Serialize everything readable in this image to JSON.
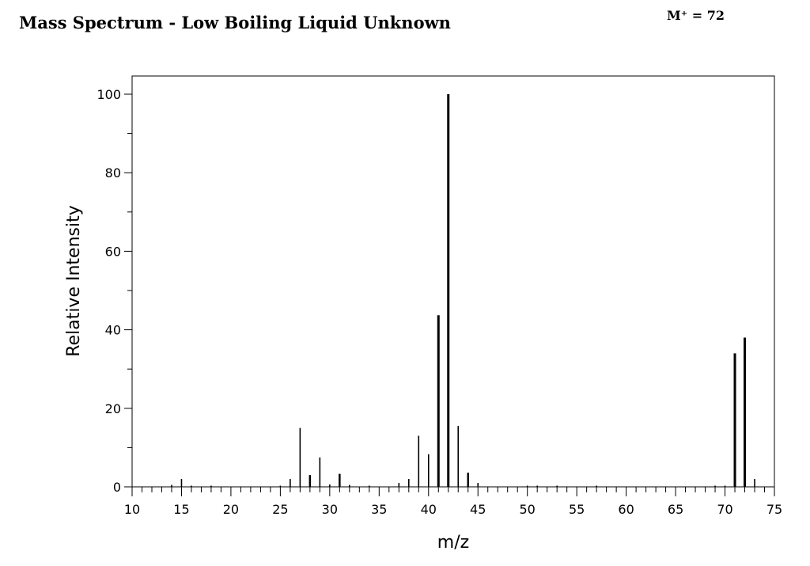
{
  "header": {
    "title": "Mass Spectrum - Low Boiling Liquid Unknown",
    "molecular_ion": "M⁺ = 72"
  },
  "chart_data": {
    "type": "bar",
    "title": "Mass Spectrum - Low Boiling Liquid Unknown",
    "xlabel": "m/z",
    "ylabel": "Relative Intensity",
    "xlim": [
      10,
      75
    ],
    "ylim": [
      0,
      100
    ],
    "x_major_ticks": [
      10,
      15,
      20,
      25,
      30,
      35,
      40,
      45,
      50,
      55,
      60,
      65,
      70,
      75
    ],
    "y_major_ticks": [
      0,
      20,
      40,
      60,
      80,
      100
    ],
    "grid": false,
    "line_color": "#000000",
    "series": [
      {
        "peaks": [
          {
            "mz": 14,
            "intensity": 0.5
          },
          {
            "mz": 15,
            "intensity": 2
          },
          {
            "mz": 16,
            "intensity": 0.3
          },
          {
            "mz": 18,
            "intensity": 0.3
          },
          {
            "mz": 25,
            "intensity": 0.3
          },
          {
            "mz": 26,
            "intensity": 2
          },
          {
            "mz": 27,
            "intensity": 15
          },
          {
            "mz": 28,
            "intensity": 3
          },
          {
            "mz": 29,
            "intensity": 7.5
          },
          {
            "mz": 30,
            "intensity": 0.6
          },
          {
            "mz": 31,
            "intensity": 3.3
          },
          {
            "mz": 32,
            "intensity": 0.5
          },
          {
            "mz": 34,
            "intensity": 0.3
          },
          {
            "mz": 37,
            "intensity": 1
          },
          {
            "mz": 38,
            "intensity": 2
          },
          {
            "mz": 39,
            "intensity": 13
          },
          {
            "mz": 40,
            "intensity": 8.3
          },
          {
            "mz": 41,
            "intensity": 43.7
          },
          {
            "mz": 42,
            "intensity": 100
          },
          {
            "mz": 43,
            "intensity": 15.5
          },
          {
            "mz": 44,
            "intensity": 3.6
          },
          {
            "mz": 45,
            "intensity": 1
          },
          {
            "mz": 50,
            "intensity": 0.3
          },
          {
            "mz": 51,
            "intensity": 0.3
          },
          {
            "mz": 53,
            "intensity": 0.3
          },
          {
            "mz": 57,
            "intensity": 0.3
          },
          {
            "mz": 69,
            "intensity": 0.3
          },
          {
            "mz": 70,
            "intensity": 0.3
          },
          {
            "mz": 71,
            "intensity": 34
          },
          {
            "mz": 72,
            "intensity": 38
          },
          {
            "mz": 73,
            "intensity": 2
          }
        ]
      }
    ]
  }
}
